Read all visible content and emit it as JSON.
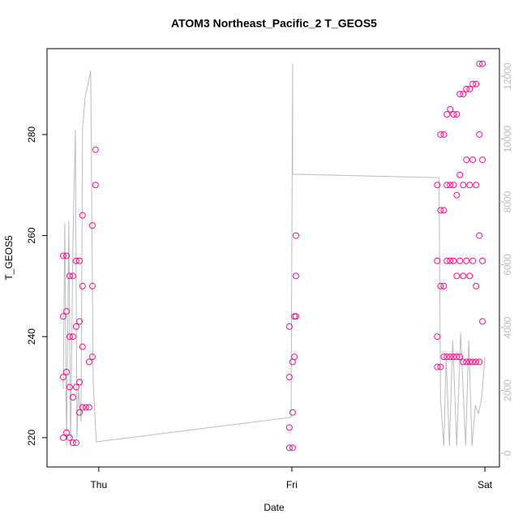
{
  "chart_data": {
    "type": "scatter",
    "title": "ATOM3 Northeast_Pacific_2 T_GEOS5",
    "x_label": "Date",
    "y_label": "T_GEOS5",
    "xlim": [
      -0.268,
      2.075
    ],
    "xticks": [
      {
        "value": 0,
        "label": "Thu"
      },
      {
        "value": 1,
        "label": "Fri"
      },
      {
        "value": 2,
        "label": "Sat"
      }
    ],
    "ylim": [
      214.2,
      297.0
    ],
    "yticks": [
      220,
      240,
      260,
      280
    ],
    "y2lim": [
      -439,
      12877
    ],
    "y2ticks": [
      0,
      2000,
      4000,
      6000,
      8000,
      10000,
      12000
    ],
    "series": [
      {
        "type": "line",
        "axis": "y2",
        "color": "#bbbbbb",
        "x": [
          -0.184,
          -0.176,
          -0.167,
          -0.155,
          -0.146,
          -0.134,
          -0.121,
          -0.113,
          -0.105,
          -0.092,
          -0.084,
          -0.071,
          -0.059,
          -0.042,
          -0.029,
          -0.013,
          0.996,
          1.004,
          1.004,
          1.008,
          1.762,
          1.77,
          1.787,
          1.799,
          1.816,
          1.833,
          1.854,
          1.874,
          1.9,
          1.916,
          1.933,
          1.95,
          1.967,
          1.983,
          2.0
        ],
        "values": [
          2040,
          7330,
          230,
          7400,
          230,
          6680,
          10300,
          490,
          2040,
          1010,
          10300,
          11330,
          11640,
          12180,
          2300,
          360,
          1140,
          12410,
          8880,
          8880,
          8770,
          1700,
          230,
          3070,
          230,
          3590,
          230,
          3850,
          230,
          3590,
          230,
          1520,
          1260,
          1780,
          3070
        ]
      },
      {
        "type": "scatter",
        "color": "#ee1289",
        "x": [
          -0.184,
          -0.184,
          -0.184,
          -0.184,
          -0.167,
          -0.167,
          -0.167,
          -0.167,
          -0.151,
          -0.151,
          -0.151,
          -0.151,
          -0.134,
          -0.134,
          -0.134,
          -0.134,
          -0.117,
          -0.117,
          -0.117,
          -0.117,
          -0.1,
          -0.1,
          -0.1,
          -0.1,
          -0.084,
          -0.084,
          -0.084,
          -0.084,
          -0.067,
          -0.05,
          -0.05,
          -0.033,
          -0.033,
          -0.033,
          -0.017,
          -0.017,
          0.987,
          0.987,
          0.987,
          0.987,
          1.004,
          1.004,
          1.004,
          1.013,
          1.013,
          1.021,
          1.021,
          1.021,
          1.753,
          1.753,
          1.753,
          1.753,
          1.77,
          1.77,
          1.77,
          1.77,
          1.787,
          1.787,
          1.787,
          1.787,
          1.803,
          1.803,
          1.803,
          1.803,
          1.82,
          1.82,
          1.82,
          1.82,
          1.837,
          1.837,
          1.837,
          1.837,
          1.854,
          1.854,
          1.854,
          1.854,
          1.87,
          1.87,
          1.87,
          1.87,
          1.887,
          1.887,
          1.887,
          1.887,
          1.904,
          1.904,
          1.904,
          1.904,
          1.921,
          1.921,
          1.921,
          1.921,
          1.937,
          1.937,
          1.937,
          1.937,
          1.954,
          1.954,
          1.954,
          1.954,
          1.971,
          1.971,
          1.971,
          1.971,
          1.987,
          1.987,
          1.987,
          1.987
        ],
        "values": [
          220,
          232,
          244,
          256,
          256,
          245,
          233,
          221,
          220,
          230,
          240,
          252,
          252,
          240,
          228,
          219,
          219,
          230,
          242,
          255,
          255,
          243,
          231,
          225,
          264,
          250,
          238,
          226,
          226,
          226,
          235,
          236,
          250,
          262,
          270,
          277,
          242,
          232,
          222,
          218,
          218,
          225,
          235,
          236,
          244,
          244,
          252,
          260,
          270,
          255,
          240,
          234,
          234,
          250,
          265,
          280,
          280,
          265,
          250,
          236,
          236,
          255,
          270,
          284,
          285,
          270,
          255,
          236,
          236,
          255,
          270,
          284,
          284,
          268,
          252,
          236,
          236,
          255,
          272,
          288,
          288,
          270,
          252,
          235,
          235,
          255,
          275,
          289,
          289,
          270,
          252,
          235,
          235,
          255,
          275,
          290,
          290,
          270,
          250,
          235,
          235,
          260,
          280,
          294,
          294,
          275,
          255,
          243
        ]
      }
    ]
  }
}
